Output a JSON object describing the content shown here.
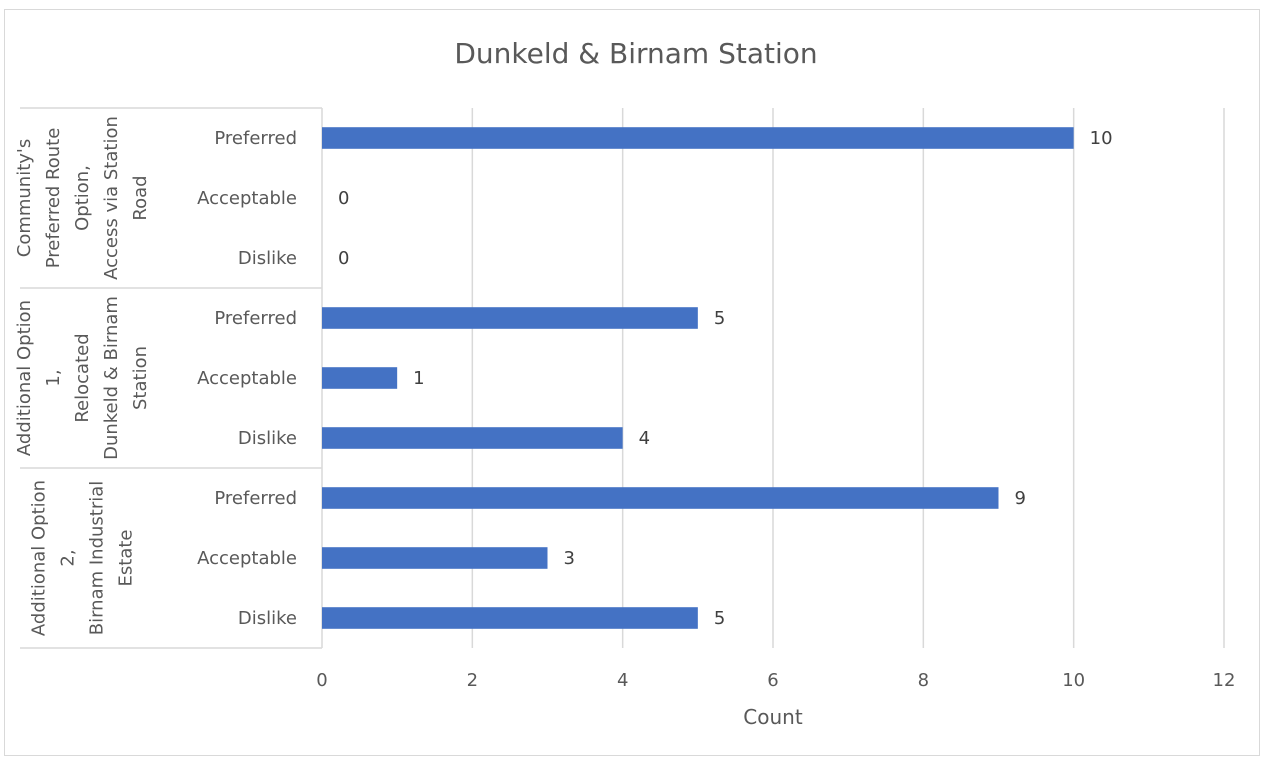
{
  "chart_data": {
    "type": "bar",
    "orientation": "horizontal",
    "title": "Dunkeld & Birnam Station",
    "xlabel": "Count",
    "ylabel": "",
    "xlim": [
      0,
      12
    ],
    "x_ticks": [
      0,
      2,
      4,
      6,
      8,
      10,
      12
    ],
    "grid": true,
    "legend": "none",
    "bar_color": "#4472C4",
    "groups": [
      {
        "name_lines": [
          "Community's",
          "Preferred Route",
          "Option,",
          "Access via Station",
          "Road"
        ],
        "categories": [
          "Preferred",
          "Acceptable",
          "Dislike"
        ],
        "values": [
          10,
          0,
          0
        ]
      },
      {
        "name_lines": [
          "Additional Option",
          "1,",
          "Relocated",
          "Dunkeld & Birnam",
          "Station"
        ],
        "categories": [
          "Preferred",
          "Acceptable",
          "Dislike"
        ],
        "values": [
          5,
          1,
          4
        ]
      },
      {
        "name_lines": [
          "Additional Option",
          "2,",
          "Birnam Industrial",
          "Estate"
        ],
        "categories": [
          "Preferred",
          "Acceptable",
          "Dislike"
        ],
        "values": [
          9,
          3,
          5
        ]
      }
    ]
  }
}
